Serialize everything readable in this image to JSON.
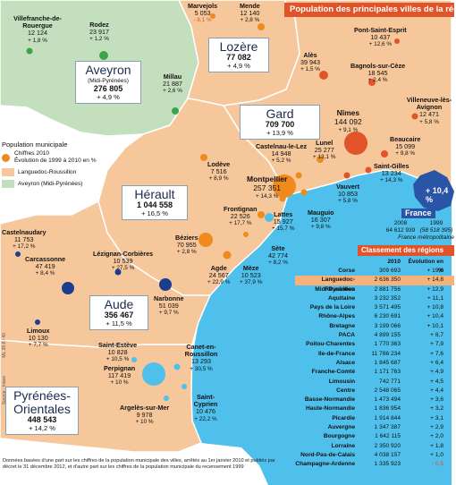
{
  "title": "Population des principales villes de la région",
  "departments": {
    "lozere": {
      "name": "Lozère",
      "population": "77 082",
      "evolution": "+ 4,9 %"
    },
    "aveyron": {
      "name": "Aveyron",
      "subtitle": "(Midi-Pyrénées)",
      "population": "276 805",
      "evolution": "+ 4,9 %"
    },
    "gard": {
      "name": "Gard",
      "population": "709 700",
      "evolution": "+ 13,9 %"
    },
    "herault": {
      "name": "Hérault",
      "population": "1 044 558",
      "evolution": "+ 16,5 %"
    },
    "aude": {
      "name": "Aude",
      "population": "356 467",
      "evolution": "+ 11,5 %"
    },
    "po": {
      "name_line1": "Pyrénées-",
      "name_line2": "Orientales",
      "population": "448 543",
      "evolution": "+ 14,2 %"
    }
  },
  "cities": {
    "marvejols": {
      "name": "Marvejols",
      "population": "5 053",
      "evolution": "- 8,1 %"
    },
    "mende": {
      "name": "Mende",
      "population": "12 140",
      "evolution": "+ 2,8 %"
    },
    "villefranche": {
      "name": "Villefranche-de-Rouergue",
      "population": "12 124",
      "evolution": "+ 1,8 %"
    },
    "rodez": {
      "name": "Rodez",
      "population": "23 917",
      "evolution": "+ 1,2 %"
    },
    "millau": {
      "name": "Millau",
      "population": "21 887",
      "evolution": "+ 2,6 %"
    },
    "ales": {
      "name": "Alès",
      "population": "39 943",
      "evolution": "+ 1,5 %"
    },
    "pontsaintesprit": {
      "name": "Pont-Saint-Esprit",
      "population": "10 437",
      "evolution": "+ 12,6 %"
    },
    "bagnols": {
      "name": "Bagnols-sur-Cèze",
      "population": "18 545",
      "evolution": "+ 2,4 %"
    },
    "villeneuve": {
      "name": "Villeneuve-lès-Avignon",
      "population": "12 471",
      "evolution": "+ 5,8 %"
    },
    "nimes": {
      "name": "Nîmes",
      "population": "144 092",
      "evolution": "+ 9,1 %"
    },
    "beaucaire": {
      "name": "Beaucaire",
      "population": "15 099",
      "evolution": "+ 9,8 %"
    },
    "saintgilles": {
      "name": "Saint-Gilles",
      "population": "13 234",
      "evolution": "+ 14,3 %"
    },
    "vauvert": {
      "name": "Vauvert",
      "population": "10 853",
      "evolution": "+ 5,8 %"
    },
    "lunel": {
      "name": "Lunel",
      "population": "25 277",
      "evolution": "+ 13,1 %"
    },
    "castelnau": {
      "name": "Castelnau-le-Lez",
      "population": "14 948",
      "evolution": "+ 5,2 %"
    },
    "montpellier": {
      "name": "Montpellier",
      "population": "257 351",
      "evolution": "+ 14,3 %"
    },
    "lodeve": {
      "name": "Lodève",
      "population": "7 516",
      "evolution": "+ 8,9 %"
    },
    "lattes": {
      "name": "Lattes",
      "population": "15 927",
      "evolution": "+ 15,7 %"
    },
    "mauguio": {
      "name": "Mauguio",
      "population": "16 307",
      "evolution": "+ 9,8 %"
    },
    "frontignan": {
      "name": "Frontignan",
      "population": "22 526",
      "evolution": "+ 17,7 %"
    },
    "sete": {
      "name": "Sète",
      "population": "42 774",
      "evolution": "+ 8,2 %"
    },
    "beziers": {
      "name": "Béziers",
      "population": "70 955",
      "evolution": "+ 2,8 %"
    },
    "agde": {
      "name": "Agde",
      "population": "24 567",
      "evolution": "+ 22,9 %"
    },
    "meze": {
      "name": "Mèze",
      "population": "10 523",
      "evolution": "+ 37,9 %"
    },
    "castelnaudary": {
      "name": "Castelnaudary",
      "population": "11 753",
      "evolution": "+ 17,2 %"
    },
    "carcassonne": {
      "name": "Carcassonne",
      "population": "47 419",
      "evolution": "+ 8,4 %"
    },
    "lezignan": {
      "name": "Lézignan-Corbières",
      "population": "10 539",
      "evolution": "+ 27,5 %"
    },
    "narbonne": {
      "name": "Narbonne",
      "population": "51 039",
      "evolution": "+ 9,7 %"
    },
    "limoux": {
      "name": "Limoux",
      "population": "10 130",
      "evolution": "+ 7,7 %"
    },
    "saintesteve": {
      "name": "Saint-Estève",
      "population": "10 828",
      "evolution": "+ 10,5 %"
    },
    "canet": {
      "name": "Canet-en-Roussillon",
      "population": "13 293",
      "evolution": "+ 30,5 %"
    },
    "perpignan": {
      "name": "Perpignan",
      "population": "117 419",
      "evolution": "+ 10 %"
    },
    "argeles": {
      "name": "Argelès-sur-Mer",
      "population": "9 978",
      "evolution": "+ 10 %"
    },
    "saintcyprien": {
      "name": "Saint-Cyprien",
      "population": "10 476",
      "evolution": "+ 22,2 %"
    }
  },
  "legend": {
    "title": "Population municipale",
    "dot_line1": "Chiffres 2010",
    "dot_line2": "Évolution de 1999 à 2010 en %",
    "lr": "Languedoc-Roussillon",
    "mp": "Aveyron (Midi-Pyrénées)",
    "colors": {
      "lr": "#f6c79b",
      "mp": "#c3dfbe",
      "dot": "#f08a1e",
      "bigdot": "#1c3d8f",
      "sea": "#4fc0ec"
    }
  },
  "france": {
    "label": "France",
    "badge": "+ 10,4 %",
    "y2008": "2008",
    "v2008": "64 612 939",
    "y1999": "1999",
    "v1999": "(58 518 395)",
    "note": "France métropolitaine"
  },
  "ranking": {
    "title": "Classement des régions",
    "col_pop": "2010",
    "col_ev": "Évolution en %",
    "rows": [
      {
        "name": "Corse",
        "pop": "309 693",
        "ev": "+ 19,0"
      },
      {
        "name": "Languedoc-Roussillon",
        "pop": "2 636 350",
        "ev": "+ 14,8"
      },
      {
        "name": "Midi-Pyrénées",
        "pop": "2 881 756",
        "ev": "+ 12,9"
      },
      {
        "name": "Aquitaine",
        "pop": "3 232 352",
        "ev": "+ 11,1"
      },
      {
        "name": "Pays de la Loire",
        "pop": "3 571 495",
        "ev": "+ 10,8"
      },
      {
        "name": "Rhône-Alpes",
        "pop": "6 230 691",
        "ev": "+ 10,4"
      },
      {
        "name": "Bretagne",
        "pop": "3 199 066",
        "ev": "+ 10,1"
      },
      {
        "name": "PACA",
        "pop": "4 899 155",
        "ev": "+ 8,7"
      },
      {
        "name": "Poitou-Charentes",
        "pop": "1 770 363",
        "ev": "+ 7,9"
      },
      {
        "name": "Ile-de-France",
        "pop": "11 786 234",
        "ev": "+ 7,6"
      },
      {
        "name": "Alsace",
        "pop": "1 845 687",
        "ev": "+ 6,4"
      },
      {
        "name": "Franche-Comté",
        "pop": "1 171 763",
        "ev": "+ 4,9"
      },
      {
        "name": "Limousin",
        "pop": "742 771",
        "ev": "+ 4,5"
      },
      {
        "name": "Centre",
        "pop": "2 548 065",
        "ev": "+ 4,4"
      },
      {
        "name": "Basse-Normandie",
        "pop": "1 473 494",
        "ev": "+ 3,6"
      },
      {
        "name": "Haute-Normandie",
        "pop": "1 836 954",
        "ev": "+ 3,2"
      },
      {
        "name": "Picardie",
        "pop": "1 914 844",
        "ev": "+ 3,1"
      },
      {
        "name": "Auvergne",
        "pop": "1 347 387",
        "ev": "+ 2,9"
      },
      {
        "name": "Bourgogne",
        "pop": "1 642 115",
        "ev": "+ 2,0"
      },
      {
        "name": "Lorraine",
        "pop": "2 350 920",
        "ev": "+ 1,8"
      },
      {
        "name": "Nord-Pas-de-Calais",
        "pop": "4 038 157",
        "ev": "+ 1,0"
      },
      {
        "name": "Champagne-Ardenne",
        "pop": "1 335 923",
        "ev": "- 0,5"
      }
    ]
  },
  "footnote": "Données basées d'une part sur les chiffres de la population municipale des villes, arrêtés au 1er janvier 2010 et publiés par décret le 31 décembre 2012, et d'autre part sur les chiffres de la population municipale du recensement 1999",
  "source": "Source : Insee",
  "credit": "ML 28 8 / 40"
}
